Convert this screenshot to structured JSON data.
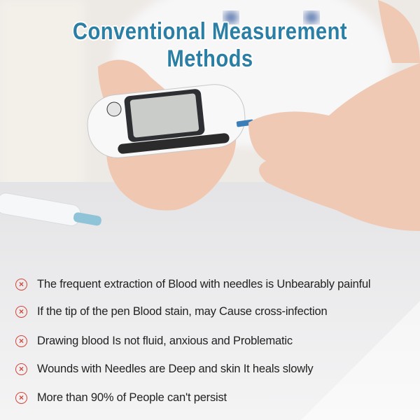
{
  "title": "Conventional Measurement Methods",
  "items": [
    {
      "icon": "x-circle-icon",
      "text": "The frequent extraction of Blood with needles is Unbearably painful"
    },
    {
      "icon": "x-circle-icon",
      "text": "If the tip of the pen Blood stain, may Cause cross-infection"
    },
    {
      "icon": "x-circle-icon",
      "text": "Drawing blood Is not fluid, anxious and Problematic"
    },
    {
      "icon": "x-circle-icon",
      "text": "Wounds with Needles are Deep and skin It heals slowly"
    },
    {
      "icon": "x-circle-icon",
      "text": "More than 90% of People can't persist"
    }
  ],
  "colors": {
    "title": "#2b7fa4",
    "icon": "#d2473a"
  }
}
